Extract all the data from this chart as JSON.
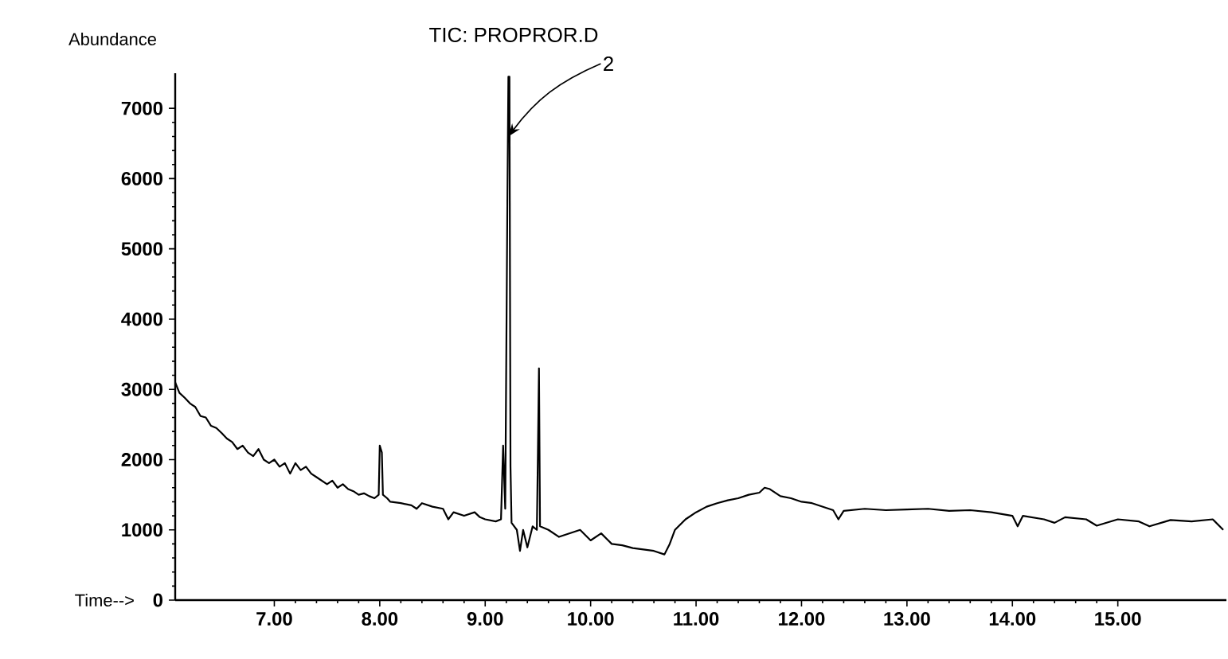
{
  "chart_data": {
    "type": "line",
    "title": "TIC: PROPROR.D",
    "xlabel": "Time-->",
    "ylabel": "Abundance",
    "xlim": [
      6.06,
      16.03
    ],
    "ylim": [
      0,
      7500
    ],
    "xticks": [
      {
        "value": 7,
        "label": "7.00"
      },
      {
        "value": 8,
        "label": "8.00"
      },
      {
        "value": 9,
        "label": "9.00"
      },
      {
        "value": 10,
        "label": "10.00"
      },
      {
        "value": 11,
        "label": "11.00"
      },
      {
        "value": 12,
        "label": "12.00"
      },
      {
        "value": 13,
        "label": "13.00"
      },
      {
        "value": 14,
        "label": "14.00"
      },
      {
        "value": 15,
        "label": "15.00"
      }
    ],
    "yticks": [
      0,
      1000,
      2000,
      3000,
      4000,
      5000,
      6000,
      7000
    ],
    "grid": false,
    "annotations": [
      {
        "text": "2",
        "x": 9.22,
        "y": 6600
      }
    ],
    "x": [
      6.06,
      6.1,
      6.15,
      6.2,
      6.25,
      6.3,
      6.35,
      6.4,
      6.45,
      6.5,
      6.55,
      6.6,
      6.65,
      6.7,
      6.75,
      6.8,
      6.85,
      6.9,
      6.95,
      7.0,
      7.05,
      7.1,
      7.15,
      7.2,
      7.25,
      7.3,
      7.35,
      7.4,
      7.45,
      7.5,
      7.55,
      7.6,
      7.65,
      7.7,
      7.75,
      7.8,
      7.85,
      7.9,
      7.95,
      7.99,
      8.0,
      8.02,
      8.03,
      8.07,
      8.1,
      8.2,
      8.3,
      8.35,
      8.4,
      8.5,
      8.6,
      8.65,
      8.7,
      8.8,
      8.9,
      8.95,
      9.0,
      9.1,
      9.15,
      9.17,
      9.19,
      9.21,
      9.22,
      9.23,
      9.24,
      9.25,
      9.3,
      9.33,
      9.36,
      9.4,
      9.45,
      9.49,
      9.5,
      9.51,
      9.52,
      9.6,
      9.7,
      9.8,
      9.9,
      10.0,
      10.1,
      10.2,
      10.3,
      10.4,
      10.5,
      10.6,
      10.7,
      10.75,
      10.8,
      10.9,
      11.0,
      11.1,
      11.2,
      11.3,
      11.4,
      11.5,
      11.6,
      11.65,
      11.7,
      11.8,
      11.9,
      12.0,
      12.1,
      12.2,
      12.3,
      12.35,
      12.4,
      12.6,
      12.8,
      13.0,
      13.2,
      13.4,
      13.6,
      13.8,
      14.0,
      14.05,
      14.1,
      14.3,
      14.4,
      14.5,
      14.7,
      14.8,
      15.0,
      15.2,
      15.3,
      15.5,
      15.7,
      15.9,
      16.0
    ],
    "series": [
      {
        "color": "#000000",
        "values": [
          3100,
          2950,
          2880,
          2800,
          2750,
          2620,
          2600,
          2480,
          2450,
          2380,
          2300,
          2250,
          2150,
          2200,
          2100,
          2050,
          2150,
          2000,
          1950,
          2000,
          1900,
          1950,
          1800,
          1950,
          1850,
          1900,
          1800,
          1750,
          1700,
          1650,
          1700,
          1600,
          1650,
          1580,
          1550,
          1500,
          1520,
          1480,
          1450,
          1500,
          2200,
          2100,
          1500,
          1450,
          1400,
          1380,
          1350,
          1300,
          1380,
          1330,
          1300,
          1150,
          1250,
          1200,
          1250,
          1180,
          1150,
          1120,
          1150,
          2200,
          1300,
          5600,
          7450,
          7450,
          1900,
          1100,
          1000,
          700,
          1000,
          750,
          1050,
          1000,
          2100,
          3300,
          1050,
          1000,
          900,
          950,
          1000,
          850,
          950,
          800,
          780,
          740,
          720,
          700,
          650,
          800,
          1000,
          1150,
          1250,
          1330,
          1380,
          1420,
          1450,
          1500,
          1530,
          1600,
          1580,
          1480,
          1450,
          1400,
          1380,
          1330,
          1280,
          1150,
          1270,
          1300,
          1280,
          1290,
          1300,
          1270,
          1280,
          1250,
          1200,
          1050,
          1200,
          1150,
          1100,
          1180,
          1150,
          1060,
          1150,
          1120,
          1050,
          1140,
          1120,
          1150,
          1000
        ]
      }
    ]
  }
}
